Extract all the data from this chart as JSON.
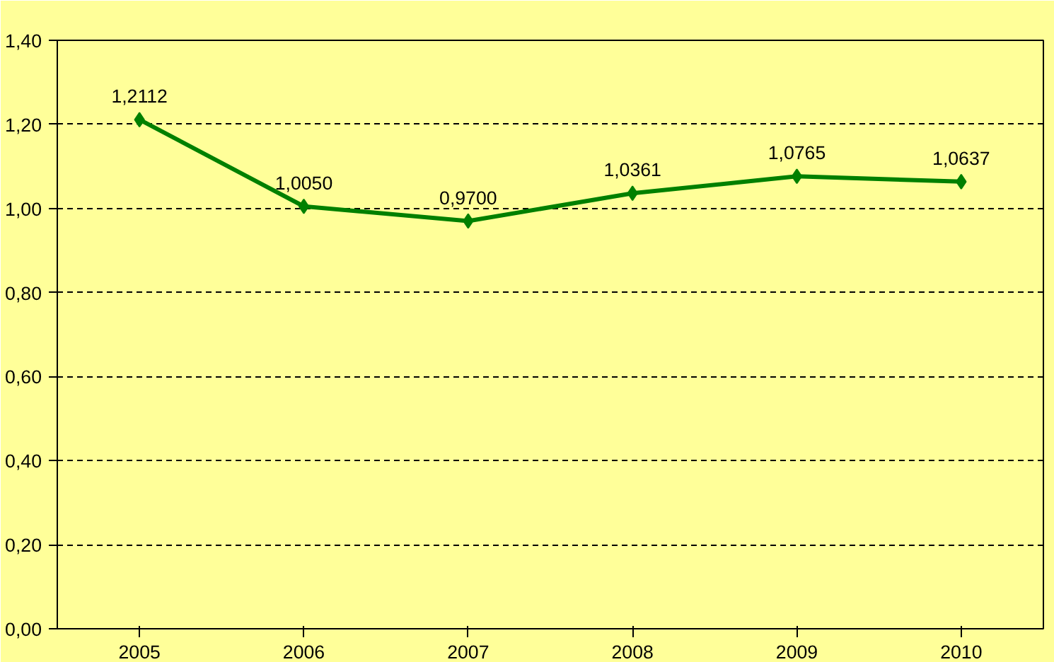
{
  "chart_data": {
    "type": "line",
    "categories": [
      "2005",
      "2006",
      "2007",
      "2008",
      "2009",
      "2010"
    ],
    "series": [
      {
        "color": "#008000",
        "values": [
          1.2112,
          1.005,
          0.97,
          1.0361,
          1.0765,
          1.0637
        ]
      }
    ],
    "value_labels": [
      "1,2112",
      "1,0050",
      "0,9700",
      "1,0361",
      "1,0765",
      "1,0637"
    ],
    "ylim": [
      0,
      1.4
    ],
    "yticks": [
      {
        "value": 0,
        "label": "0,00"
      },
      {
        "value": 0.2,
        "label": "0,20"
      },
      {
        "value": 0.4,
        "label": "0,40"
      },
      {
        "value": 0.6,
        "label": "0,60"
      },
      {
        "value": 0.8,
        "label": "0,80"
      },
      {
        "value": 1.0,
        "label": "1,00"
      },
      {
        "value": 1.2,
        "label": "1,20"
      },
      {
        "value": 1.4,
        "label": "1,40"
      }
    ],
    "grid": "y",
    "marker": "diamond",
    "line_style": "solid"
  }
}
